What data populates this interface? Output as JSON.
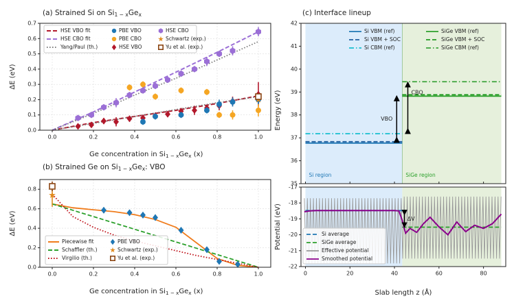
{
  "chart_data": [
    {
      "type": "scatter",
      "title": "(a) Strained Si on Si$_{1-x}$Ge$_x$",
      "title_parts": [
        "(a) Strained Si on Si",
        "1 − x",
        "Ge",
        "x"
      ],
      "xlabel_parts": [
        "Ge concentration in Si",
        "1 − x",
        "Ge",
        "x",
        " (x)"
      ],
      "ylabel": "ΔE (eV)",
      "xlim": [
        -0.06,
        1.06
      ],
      "ylim": [
        0,
        0.7
      ],
      "xticks": [
        "0.0",
        "0.2",
        "0.4",
        "0.6",
        "0.8",
        "1.0"
      ],
      "yticks": [
        "0.0",
        "0.1",
        "0.2",
        "0.3",
        "0.4",
        "0.5",
        "0.6",
        "0.7"
      ],
      "grid": true,
      "legend_position": "top-left",
      "legend": [
        "HSE VBO fit",
        "HSE CBO fit",
        "Yang/Paul (th.)",
        "PBE VBO",
        "PBE CBO",
        "HSE VBO",
        "HSE CBO",
        "Schwartz (exp.)",
        "Yu et al. (exp.)"
      ],
      "colors": {
        "vbo": "#b2182b",
        "cbo": "#9b6fd6",
        "pbe_vbo": "#1f77b4",
        "pbe_cbo": "#f5a623",
        "yang": "#808080",
        "schwartz": "#e08a1e",
        "yu": "#8b4513"
      },
      "series": [
        {
          "name": "HSE VBO fit",
          "style": "dashed-line",
          "x": [
            0,
            0.2,
            0.4,
            0.6,
            0.8,
            1.0
          ],
          "y": [
            0,
            0.05,
            0.09,
            0.13,
            0.175,
            0.225
          ]
        },
        {
          "name": "HSE CBO fit",
          "style": "dashed-line",
          "x": [
            0,
            0.2,
            0.4,
            0.6,
            0.8,
            1.0
          ],
          "y": [
            0,
            0.12,
            0.25,
            0.38,
            0.51,
            0.645
          ]
        },
        {
          "name": "Yang/Paul (th.)",
          "style": "dotted-line",
          "x": [
            0,
            0.2,
            0.4,
            0.6,
            0.8,
            1.0
          ],
          "y": [
            0,
            0.11,
            0.23,
            0.34,
            0.46,
            0.58
          ]
        },
        {
          "name": "Yang/Paul (th.) 2",
          "style": "dotted-line",
          "x": [
            0,
            0.2,
            0.4,
            0.6,
            0.8,
            1.0
          ],
          "y": [
            0,
            0.045,
            0.09,
            0.135,
            0.18,
            0.22
          ]
        },
        {
          "name": "HSE VBO",
          "marker": "diamond",
          "x": [
            0.125,
            0.19,
            0.25,
            0.31,
            0.375,
            0.44,
            0.5,
            0.56,
            0.625,
            0.69,
            0.75,
            0.81,
            0.875,
            1.0
          ],
          "y": [
            0.025,
            0.035,
            0.06,
            0.055,
            0.075,
            0.08,
            0.095,
            0.105,
            0.125,
            0.13,
            0.145,
            0.16,
            0.19,
            0.235
          ],
          "err": [
            0.01,
            0.015,
            0.02,
            0.03,
            0.02,
            0.02,
            0.02,
            0.02,
            0.02,
            0.03,
            0.02,
            0.03,
            0.03,
            0.08
          ]
        },
        {
          "name": "HSE CBO",
          "marker": "hexagon",
          "x": [
            0.125,
            0.19,
            0.25,
            0.31,
            0.375,
            0.44,
            0.5,
            0.56,
            0.625,
            0.69,
            0.75,
            0.81,
            0.875,
            1.0
          ],
          "y": [
            0.08,
            0.1,
            0.15,
            0.18,
            0.23,
            0.26,
            0.29,
            0.33,
            0.37,
            0.4,
            0.45,
            0.5,
            0.52,
            0.645
          ],
          "err": [
            0.02,
            0.02,
            0.02,
            0.03,
            0.02,
            0.02,
            0.02,
            0.02,
            0.02,
            0.02,
            0.03,
            0.02,
            0.03,
            0.03
          ]
        },
        {
          "name": "PBE VBO",
          "marker": "circle",
          "x": [
            0.44,
            0.5,
            0.625,
            0.75,
            0.81,
            0.875,
            1.0
          ],
          "y": [
            0.055,
            0.09,
            0.1,
            0.13,
            0.17,
            0.185,
            0.2
          ],
          "err": [
            0.02,
            0.02,
            0.02,
            0.02,
            0.03,
            0.03,
            0.03
          ]
        },
        {
          "name": "PBE CBO",
          "marker": "circle",
          "x": [
            0.375,
            0.44,
            0.5,
            0.625,
            0.75,
            0.81,
            0.875,
            1.0
          ],
          "y": [
            0.28,
            0.3,
            0.22,
            0.26,
            0.25,
            0.1,
            0.1,
            0.13
          ],
          "err": [
            0.02,
            0.02,
            0.02,
            0.02,
            0.02,
            0.02,
            0.03,
            0.04
          ]
        },
        {
          "name": "Schwartz (exp.)",
          "marker": "star",
          "x": [
            1.0
          ],
          "y": [
            0.2
          ]
        },
        {
          "name": "Yu et al. (exp.)",
          "marker": "square",
          "x": [
            1.0
          ],
          "y": [
            0.22
          ]
        }
      ]
    },
    {
      "type": "line",
      "title": "(b) Strained Ge on Si$_{1-x}$Ge$_x$: VBO",
      "title_parts": [
        "(b) Strained Ge on Si",
        "1 − x",
        "Ge",
        "x",
        ": VBO"
      ],
      "xlabel_parts": [
        "Ge concentration in Si",
        "1 − x",
        "Ge",
        "x",
        " (x)"
      ],
      "ylabel": "ΔE (eV)",
      "xlim": [
        -0.06,
        1.06
      ],
      "ylim": [
        0,
        0.9
      ],
      "xticks": [
        "0.0",
        "0.2",
        "0.4",
        "0.6",
        "0.8",
        "1.0"
      ],
      "yticks": [
        "0.0",
        "0.2",
        "0.4",
        "0.6",
        "0.8"
      ],
      "grid": true,
      "legend_position": "bottom-left",
      "legend": [
        "Piecewise fit",
        "Schaffler (th.)",
        "Virgilio (th.)",
        "PBE VBO",
        "Schwartz (exp.)",
        "Yu et al. (exp.)"
      ],
      "colors": {
        "fit": "#f07c1c",
        "schaffler": "#2ca02c",
        "virgilio": "#c0141c",
        "pbe": "#1f77b4",
        "schwartz": "#e08a1e",
        "yu": "#8b4513"
      },
      "series": [
        {
          "name": "Piecewise fit",
          "style": "solid-line",
          "x": [
            0,
            0.1,
            0.2,
            0.3,
            0.4,
            0.5,
            0.6,
            0.7,
            0.8,
            0.9,
            1.0
          ],
          "y": [
            0.65,
            0.61,
            0.59,
            0.57,
            0.54,
            0.49,
            0.41,
            0.25,
            0.09,
            0.02,
            0.0
          ]
        },
        {
          "name": "Schaffler (th.)",
          "style": "dashed-line",
          "x": [
            0,
            1.0
          ],
          "y": [
            0.65,
            0.0
          ]
        },
        {
          "name": "Virgilio (th.)",
          "style": "dotted-line",
          "x": [
            0,
            0.1,
            0.2,
            0.3,
            0.4,
            0.5,
            0.6,
            0.7,
            0.8,
            0.9,
            1.0
          ],
          "y": [
            0.75,
            0.52,
            0.41,
            0.33,
            0.27,
            0.22,
            0.17,
            0.12,
            0.08,
            0.04,
            0.0
          ]
        },
        {
          "name": "PBE VBO",
          "marker": "diamond",
          "x": [
            0.25,
            0.375,
            0.44,
            0.5,
            0.625,
            0.75,
            0.81,
            0.9
          ],
          "y": [
            0.585,
            0.56,
            0.535,
            0.51,
            0.38,
            0.18,
            0.06,
            0.03
          ],
          "err": [
            0.03,
            0.03,
            0.03,
            0.03,
            0.03,
            0.03,
            0.02,
            0.02
          ]
        },
        {
          "name": "Schwartz (exp.)",
          "marker": "star",
          "x": [
            0.0
          ],
          "y": [
            0.74
          ],
          "err": [
            0.12
          ]
        },
        {
          "name": "Yu et al. (exp.)",
          "marker": "square",
          "x": [
            0.0
          ],
          "y": [
            0.83
          ],
          "err": [
            0.05
          ]
        }
      ]
    },
    {
      "type": "line",
      "title": "(c) Interface lineup",
      "ylabel": "Energy (eV)",
      "ylim": [
        35,
        42
      ],
      "xlim": [
        -2,
        90
      ],
      "yticks": [
        "35",
        "36",
        "37",
        "38",
        "39",
        "40",
        "41",
        "42"
      ],
      "regions": [
        {
          "name": "Si region",
          "x": [
            0,
            43.5
          ],
          "color": "#dcecfb"
        },
        {
          "name": "SiGe region",
          "x": [
            43.5,
            88
          ],
          "color": "#e6f0dc"
        }
      ],
      "legend_position": "top",
      "legend": [
        "Si VBM (ref)",
        "Si VBM + SOC",
        "Si CBM (ref)",
        "SiGe VBM (ref)",
        "SiGe VBM + SOC",
        "SiGe CBM (ref)"
      ],
      "colors": {
        "si_vbm": "#1f77b4",
        "si_vbm_soc": "#1f5fa0",
        "si_cbm": "#17becf",
        "sige_vbm": "#2ca02c",
        "sige_vbm_soc": "#229a22",
        "sige_cbm": "#3aa33a"
      },
      "levels": [
        {
          "name": "Si VBM (ref)",
          "style": "solid",
          "x": [
            0,
            43.5
          ],
          "y": 36.77
        },
        {
          "name": "Si VBM + SOC",
          "style": "dashed",
          "x": [
            0,
            43.5
          ],
          "y": 36.83
        },
        {
          "name": "Si CBM (ref)",
          "style": "dashdot",
          "x": [
            0,
            43.5
          ],
          "y": 37.18
        },
        {
          "name": "SiGe VBM (ref)",
          "style": "solid",
          "x": [
            43.5,
            88
          ],
          "y": 38.82
        },
        {
          "name": "SiGe VBM + SOC",
          "style": "dashed",
          "x": [
            43.5,
            88
          ],
          "y": 38.88
        },
        {
          "name": "SiGe CBM (ref)",
          "style": "dashdot",
          "x": [
            43.5,
            88
          ],
          "y": 39.45
        }
      ],
      "annotations": [
        {
          "text": "VBO",
          "from": 36.8,
          "to": 38.85,
          "x": 41
        },
        {
          "text": "CBO",
          "from": 37.18,
          "to": 39.45,
          "x": 46
        }
      ]
    },
    {
      "type": "line",
      "ylabel": "Potential (eV)",
      "xlabel": "Slab length z (Å)",
      "xlim": [
        -2,
        90
      ],
      "ylim": [
        -22,
        -17
      ],
      "xticks": [
        "0",
        "20",
        "40",
        "60",
        "80"
      ],
      "yticks": [
        "-22",
        "-21",
        "-20",
        "-19",
        "-18",
        "-17"
      ],
      "legend_position": "bottom-left",
      "legend": [
        "Si average",
        "SiGe average",
        "Effective potential",
        "Smoothed potential"
      ],
      "colors": {
        "si_avg": "#1f77b4",
        "sige_avg": "#2ca02c",
        "effective": "#999999",
        "smoothed": "#8b008b"
      },
      "si_average": {
        "x": [
          0,
          43.5
        ],
        "y": -18.48
      },
      "sige_average": {
        "x": [
          43.5,
          88
        ],
        "y": -19.52
      },
      "effective_potential": {
        "x_range": [
          -0.5,
          88
        ],
        "period": 1.36,
        "si_band": [
          -21.8,
          -17.7
        ],
        "sige_band": [
          -21.5,
          -17.6
        ]
      },
      "smoothed_potential": {
        "x": [
          -0.5,
          2,
          5,
          10,
          20,
          30,
          40,
          42,
          43.5,
          45,
          47,
          50,
          53,
          56,
          60,
          64,
          68,
          72,
          76,
          80,
          84,
          88
        ],
        "y": [
          -18.55,
          -18.5,
          -18.48,
          -18.48,
          -18.48,
          -18.48,
          -18.48,
          -18.5,
          -19.1,
          -19.9,
          -19.6,
          -19.85,
          -19.3,
          -18.9,
          -19.5,
          -20.0,
          -19.2,
          -19.8,
          -19.4,
          -19.6,
          -19.3,
          -18.7
        ]
      },
      "annotations": [
        {
          "text": "ΔV",
          "from": -18.48,
          "to": -19.52,
          "x": 44.5
        }
      ]
    }
  ]
}
